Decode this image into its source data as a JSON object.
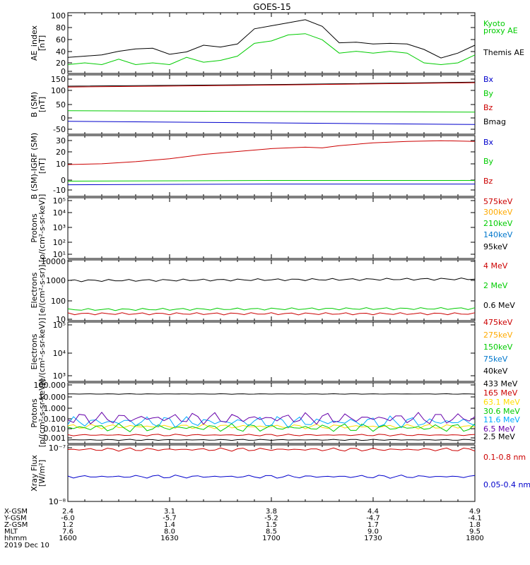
{
  "title": "GOES-15",
  "panels": [
    {
      "ylabel": [
        "AE_index",
        "[nT]"
      ],
      "ticks": [
        "100",
        "80",
        "60",
        "40",
        "20",
        "0"
      ],
      "legend": [
        {
          "text": "Kyoto",
          "color": "#00cc00"
        },
        {
          "text": "proxy AE",
          "color": "#00cc00"
        },
        {
          "text": "Themis AE",
          "color": "#000000"
        }
      ]
    },
    {
      "ylabel": [
        "B (SM)",
        "[nT]"
      ],
      "ticks": [
        "150",
        "100",
        "50",
        "0",
        "-50"
      ],
      "legend": [
        {
          "text": "Bx",
          "color": "#0000cc"
        },
        {
          "text": "By",
          "color": "#00cc00"
        },
        {
          "text": "Bz",
          "color": "#cc0000"
        },
        {
          "text": "Bmag",
          "color": "#000000"
        }
      ]
    },
    {
      "ylabel": [
        "B (SM)-IGRF (SM)",
        "[nT]"
      ],
      "ticks": [
        "30",
        "20",
        "10",
        "0",
        "-10"
      ],
      "legend": [
        {
          "text": "Bx",
          "color": "#0000cc"
        },
        {
          "text": "By",
          "color": "#00cc00"
        },
        {
          "text": "Bz",
          "color": "#cc0000"
        }
      ]
    },
    {
      "ylabel": [
        "Protons",
        "[p/(cm²-s-sr-keV)]"
      ],
      "ticks": [
        "10⁵",
        "10⁴",
        "10³",
        "10²",
        "10¹"
      ],
      "legend": [
        {
          "text": "575keV",
          "color": "#cc0000"
        },
        {
          "text": "300keV",
          "color": "#ffaa00"
        },
        {
          "text": "210keV",
          "color": "#00cc00"
        },
        {
          "text": "140keV",
          "color": "#0077cc"
        },
        {
          "text": "95keV",
          "color": "#000000"
        }
      ]
    },
    {
      "ylabel": [
        "Electrons",
        "[e/(cm²-s-sr)]"
      ],
      "ticks": [
        "10000",
        "1000",
        "100",
        "10"
      ],
      "legend": [
        {
          "text": "4 MeV",
          "color": "#cc0000"
        },
        {
          "text": "2 MeV",
          "color": "#00cc00"
        },
        {
          "text": "0.6 MeV",
          "color": "#000000"
        }
      ]
    },
    {
      "ylabel": [
        "Electrons",
        "[e/(cm²-s-sr-keV)]"
      ],
      "ticks": [
        "10⁵",
        "10⁴",
        "10³"
      ],
      "legend": [
        {
          "text": "475keV",
          "color": "#cc0000"
        },
        {
          "text": "275keV",
          "color": "#ffaa00"
        },
        {
          "text": "150keV",
          "color": "#00cc00"
        },
        {
          "text": "75keV",
          "color": "#0077cc"
        },
        {
          "text": "40keV",
          "color": "#000000"
        }
      ]
    },
    {
      "ylabel": [
        "Protons",
        "[p/(cm²-s-sr-keV)]"
      ],
      "ticks": [
        "100.000",
        "10.000",
        "1.000",
        "0.100",
        "0.010",
        "0.001"
      ],
      "legend": [
        {
          "text": "433 MeV",
          "color": "#000000"
        },
        {
          "text": "165 MeV",
          "color": "#cc0000"
        },
        {
          "text": "63.1 MeV",
          "color": "#ffdd00"
        },
        {
          "text": "30.6 MeV",
          "color": "#00cc00"
        },
        {
          "text": "11.6 MeV",
          "color": "#00aaff"
        },
        {
          "text": "6.5 MeV",
          "color": "#6600aa"
        },
        {
          "text": "2.5 MeV",
          "color": "#000000"
        }
      ]
    },
    {
      "ylabel": [
        "Xray Flux",
        "[W/m²]"
      ],
      "ticks": [
        "10⁻⁷",
        "10⁻⁸"
      ],
      "legend": [
        {
          "text": "0.1-0.8 nm",
          "color": "#cc0000"
        },
        {
          "text": "0.05-0.4 nm",
          "color": "#0000cc"
        }
      ]
    }
  ],
  "footer": {
    "rows": [
      {
        "label": "X-GSM",
        "values": [
          "2.4",
          "3.1",
          "3.8",
          "4.4",
          "4.9"
        ]
      },
      {
        "label": "Y-GSM",
        "values": [
          "-6.0",
          "-5.7",
          "-5.2",
          "-4.7",
          "-4.1"
        ]
      },
      {
        "label": "Z-GSM",
        "values": [
          "1.2",
          "1.4",
          "1.5",
          "1.7",
          "1.8"
        ]
      },
      {
        "label": "MLT",
        "values": [
          "7.6",
          "8.0",
          "8.5",
          "9.0",
          "9.5"
        ]
      },
      {
        "label": "hhmm",
        "values": [
          "1600",
          "1630",
          "1700",
          "1730",
          "1800"
        ]
      }
    ],
    "date": "2019 Dec 10"
  },
  "chart_data": {
    "type": "line",
    "title": "GOES-15",
    "x_unit": "hhmm",
    "x_ticks": [
      "1600",
      "1630",
      "1700",
      "1730",
      "1800"
    ],
    "panels": [
      {
        "ylim": [
          0,
          100
        ],
        "series": [
          {
            "name": "Themis AE",
            "color": "#000000",
            "points": [
              [
                1600,
                28
              ],
              [
                1605,
                27
              ],
              [
                1610,
                32
              ],
              [
                1615,
                35
              ],
              [
                1620,
                42
              ],
              [
                1625,
                40
              ],
              [
                1630,
                33
              ],
              [
                1635,
                34
              ],
              [
                1640,
                48
              ],
              [
                1645,
                42
              ],
              [
                1650,
                50
              ],
              [
                1655,
                72
              ],
              [
                1700,
                80
              ],
              [
                1705,
                82
              ],
              [
                1710,
                90
              ],
              [
                1715,
                76
              ],
              [
                1720,
                52
              ],
              [
                1725,
                50
              ],
              [
                1730,
                50
              ],
              [
                1735,
                48
              ],
              [
                1740,
                50
              ],
              [
                1745,
                38
              ],
              [
                1750,
                27
              ],
              [
                1755,
                32
              ],
              [
                1800,
                48
              ]
            ]
          },
          {
            "name": "Kyoto proxy AE",
            "color": "#00cc00",
            "points": [
              [
                1600,
                16
              ],
              [
                1605,
                16
              ],
              [
                1610,
                16
              ],
              [
                1615,
                22
              ],
              [
                1620,
                16
              ],
              [
                1625,
                16
              ],
              [
                1630,
                16
              ],
              [
                1635,
                25
              ],
              [
                1640,
                20
              ],
              [
                1645,
                20
              ],
              [
                1650,
                30
              ],
              [
                1655,
                48
              ],
              [
                1700,
                55
              ],
              [
                1705,
                62
              ],
              [
                1710,
                67
              ],
              [
                1715,
                54
              ],
              [
                1720,
                35
              ],
              [
                1725,
                35
              ],
              [
                1730,
                35
              ],
              [
                1735,
                35
              ],
              [
                1740,
                35
              ],
              [
                1745,
                16
              ],
              [
                1750,
                16
              ],
              [
                1755,
                16
              ],
              [
                1800,
                32
              ]
            ]
          }
        ]
      },
      {
        "ylim": [
          -60,
          160
        ],
        "series": [
          {
            "name": "Bmag",
            "color": "#000000",
            "points": [
              [
                1600,
                118
              ],
              [
                1700,
                124
              ],
              [
                1800,
                133
              ]
            ]
          },
          {
            "name": "Bz",
            "color": "#cc0000",
            "points": [
              [
                1600,
                115
              ],
              [
                1700,
                122
              ],
              [
                1800,
                131
              ]
            ]
          },
          {
            "name": "By",
            "color": "#00cc00",
            "points": [
              [
                1600,
                27
              ],
              [
                1700,
                24
              ],
              [
                1800,
                22
              ]
            ]
          },
          {
            "name": "Bx",
            "color": "#0000cc",
            "points": [
              [
                1600,
                -12
              ],
              [
                1700,
                -18
              ],
              [
                1800,
                -24
              ]
            ]
          }
        ]
      },
      {
        "ylim": [
          -10,
          32
        ],
        "series": [
          {
            "name": "Bz",
            "color": "#cc0000",
            "points": [
              [
                1600,
                12
              ],
              [
                1610,
                12.5
              ],
              [
                1620,
                14
              ],
              [
                1630,
                16
              ],
              [
                1640,
                19
              ],
              [
                1650,
                21
              ],
              [
                1700,
                23
              ],
              [
                1710,
                24
              ],
              [
                1715,
                23.5
              ],
              [
                1720,
                25
              ],
              [
                1730,
                27
              ],
              [
                1740,
                28
              ],
              [
                1750,
                28.5
              ],
              [
                1800,
                28
              ]
            ]
          },
          {
            "name": "By",
            "color": "#00cc00",
            "points": [
              [
                1600,
                0.5
              ],
              [
                1700,
                1
              ],
              [
                1800,
                1
              ]
            ]
          },
          {
            "name": "Bx",
            "color": "#0000cc",
            "points": [
              [
                1600,
                -2
              ],
              [
                1700,
                -1.5
              ],
              [
                1800,
                -1.5
              ]
            ]
          }
        ]
      },
      {
        "ylim": [
          10,
          100000
        ],
        "log": true,
        "series": []
      },
      {
        "ylim": [
          10,
          10000
        ],
        "log": true,
        "series": [
          {
            "name": "0.6 MeV",
            "color": "#000000",
            "points": [
              [
                1600,
                950
              ],
              [
                1700,
                1050
              ],
              [
                1800,
                1150
              ]
            ]
          },
          {
            "name": "2 MeV",
            "color": "#00cc00",
            "points": [
              [
                1600,
                35
              ],
              [
                1700,
                38
              ],
              [
                1800,
                40
              ]
            ]
          },
          {
            "name": "4 MeV",
            "color": "#cc0000",
            "points": [
              [
                1600,
                22
              ],
              [
                1700,
                22
              ],
              [
                1800,
                22
              ]
            ]
          }
        ]
      },
      {
        "ylim": [
          1000,
          100000
        ],
        "log": true,
        "series": []
      },
      {
        "ylim": [
          0.001,
          100
        ],
        "log": true,
        "series": [
          {
            "name": "433 MeV",
            "color": "#000000",
            "level": 12,
            "noise": 0.02
          },
          {
            "name": "165 MeV",
            "color": "#cc0000",
            "level": 0.005,
            "noise": 0.08
          },
          {
            "name": "63.1 MeV",
            "color": "#ffdd00",
            "level": 0.025,
            "noise": 0.2
          },
          {
            "name": "30.6 MeV",
            "color": "#00cc00",
            "level": 0.02,
            "noise": 0.35
          },
          {
            "name": "11.6 MeV",
            "color": "#00aaff",
            "level": 0.06,
            "noise": 0.5
          },
          {
            "name": "6.5 MeV",
            "color": "#6600aa",
            "level": 0.12,
            "noise": 0.5
          },
          {
            "name": "2.5 MeV",
            "color": "#000000",
            "level": 0.002,
            "noise": 0.05
          }
        ]
      },
      {
        "ylim": [
          1e-08,
          1e-07
        ],
        "log": true,
        "series": [
          {
            "name": "0.1-0.8 nm",
            "color": "#cc0000",
            "level": 8.3e-08,
            "noise": 0.03
          },
          {
            "name": "0.05-0.4 nm",
            "color": "#0000cc",
            "level": 2.75e-08,
            "noise": 0.03
          }
        ]
      }
    ]
  }
}
